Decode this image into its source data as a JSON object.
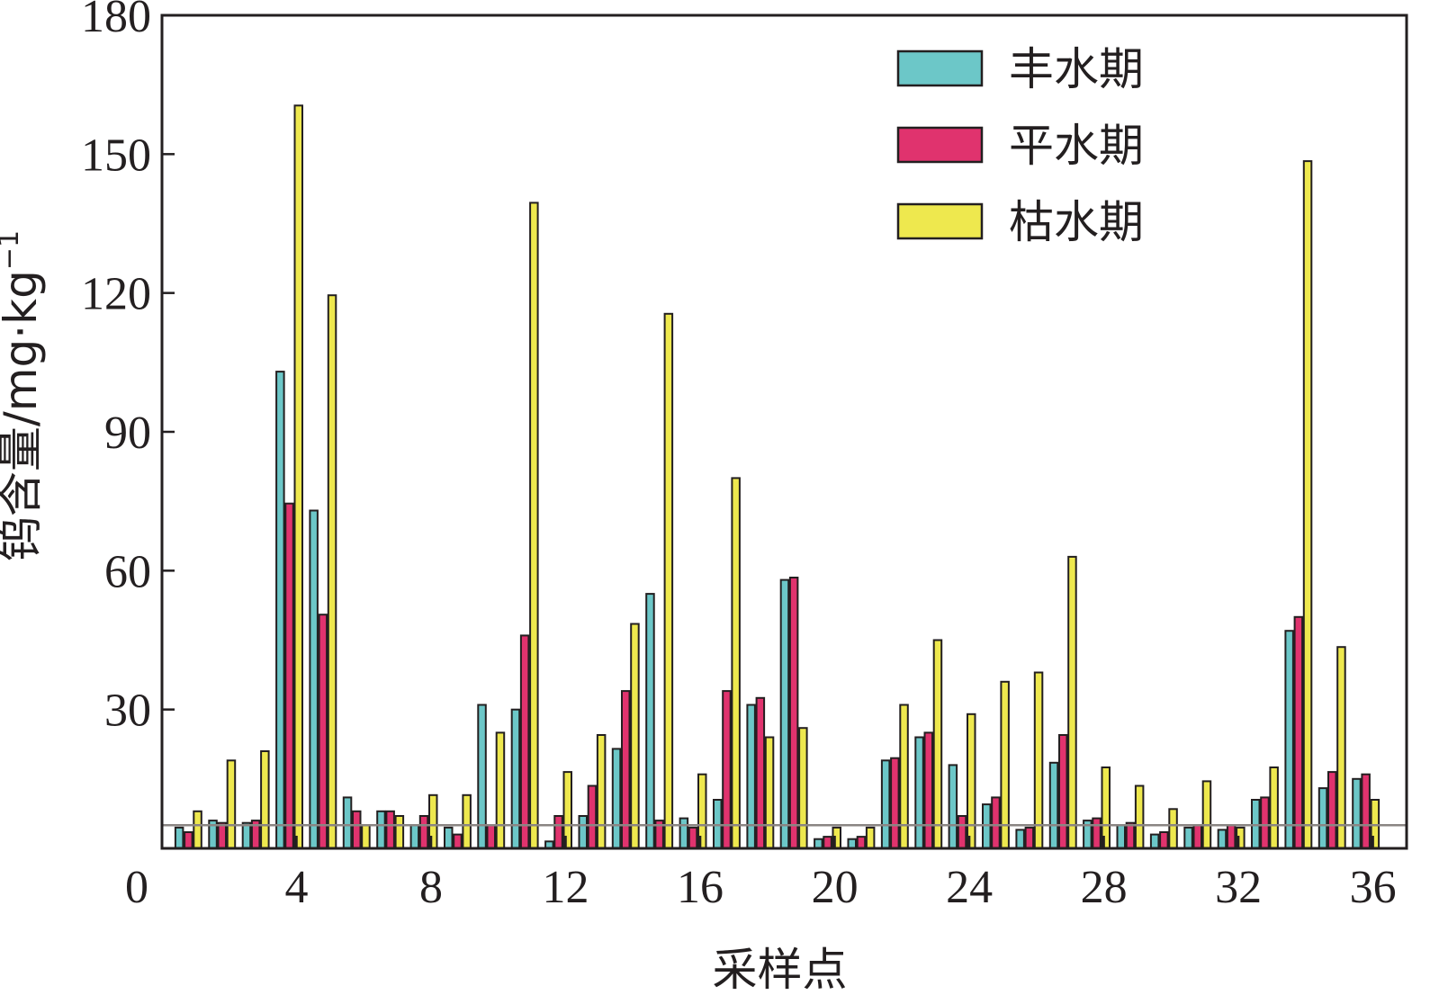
{
  "chart_data": {
    "type": "bar",
    "xlabel": "采样点",
    "ylabel": "钨含量/mg·kg",
    "ylabel_superscript": "−1",
    "xlim": [
      0,
      37
    ],
    "ylim": [
      0,
      180
    ],
    "xticks": [
      0,
      4,
      8,
      12,
      16,
      20,
      24,
      28,
      32,
      36
    ],
    "yticks": [
      30,
      60,
      90,
      120,
      150,
      180
    ],
    "grid": false,
    "legend_position": "top-right",
    "reference_line": 5,
    "x": [
      1,
      2,
      3,
      4,
      5,
      6,
      7,
      8,
      9,
      10,
      11,
      12,
      13,
      14,
      15,
      16,
      17,
      18,
      19,
      20,
      21,
      22,
      23,
      24,
      25,
      26,
      27,
      28,
      29,
      30,
      31,
      32,
      33,
      34,
      35,
      36
    ],
    "series": [
      {
        "name": "丰水期",
        "color": "#6cc7c8",
        "values": [
          4.5,
          6,
          5.5,
          103,
          73,
          11,
          8,
          5,
          4.5,
          31,
          30,
          1.5,
          7,
          21.5,
          55,
          6.5,
          10.5,
          31,
          58,
          2,
          2,
          19,
          24,
          18,
          9.5,
          4,
          18.5,
          6,
          5,
          3,
          4.5,
          4,
          10.5,
          47,
          13,
          15
        ]
      },
      {
        "name": "平水期",
        "color": "#e0336e",
        "values": [
          3.5,
          5.5,
          6,
          74.5,
          50.5,
          8,
          8,
          7,
          3,
          5,
          46,
          7,
          13.5,
          34,
          6,
          4.5,
          34,
          32.5,
          58.5,
          2.5,
          2.5,
          19.5,
          25,
          7,
          11,
          4.5,
          24.5,
          6.5,
          5.5,
          3.5,
          5,
          5,
          11,
          50,
          16.5,
          16
        ]
      },
      {
        "name": "枯水期",
        "color": "#eee84e",
        "values": [
          8,
          19,
          21,
          160.5,
          119.5,
          5,
          7,
          11.5,
          11.5,
          25,
          139.5,
          16.5,
          24.5,
          48.5,
          115.5,
          16,
          80,
          24,
          26,
          4.5,
          4.5,
          31,
          45,
          29,
          36,
          38,
          63,
          17.5,
          13.5,
          8.5,
          14.5,
          4.5,
          17.5,
          148.5,
          43.5,
          10.5
        ]
      }
    ]
  }
}
